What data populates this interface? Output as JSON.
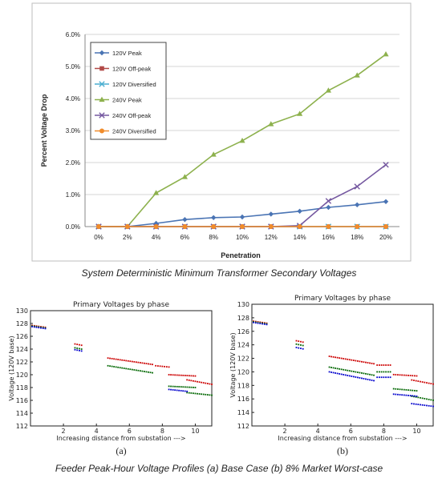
{
  "captions": {
    "top": "System Deterministic Minimum Transformer Secondary Voltages",
    "bottom": "Feeder Peak-Hour Voltage Profiles (a) Base Case (b) 8% Market Worst-case"
  },
  "chart_data": [
    {
      "type": "line",
      "title": "",
      "xlabel": "Penetration",
      "ylabel": "Percent Voltage Drop",
      "categories": [
        "0%",
        "2%",
        "4%",
        "6%",
        "8%",
        "10%",
        "12%",
        "14%",
        "16%",
        "18%",
        "20%"
      ],
      "x": [
        0,
        2,
        4,
        6,
        8,
        10,
        12,
        14,
        16,
        18,
        20
      ],
      "ylim": [
        0,
        6
      ],
      "yticks": [
        "0.0%",
        "1.0%",
        "2.0%",
        "3.0%",
        "4.0%",
        "5.0%",
        "6.0%"
      ],
      "grid": "horizontal",
      "legend": "top-left",
      "series": [
        {
          "name": "120V Peak",
          "color": "#4a74b4",
          "marker": "diamond",
          "values": [
            0,
            0,
            0.1,
            0.22,
            0.28,
            0.3,
            0.39,
            0.48,
            0.6,
            0.68,
            0.78
          ]
        },
        {
          "name": "120V Off-peak",
          "color": "#b24a48",
          "marker": "square",
          "values": [
            0,
            0,
            0,
            0,
            0,
            0,
            0,
            0,
            0,
            0,
            0
          ]
        },
        {
          "name": "120V Diversified",
          "color": "#4aaed0",
          "marker": "x",
          "values": [
            0,
            0,
            0,
            0,
            0,
            0,
            0,
            0,
            0,
            0,
            0
          ]
        },
        {
          "name": "240V Peak",
          "color": "#8db14d",
          "marker": "triangle",
          "values": [
            0,
            0,
            1.05,
            1.55,
            2.25,
            2.68,
            3.2,
            3.52,
            4.25,
            4.72,
            5.38
          ]
        },
        {
          "name": "240V Off-peak",
          "color": "#7558a0",
          "marker": "x",
          "values": [
            0,
            0,
            0,
            0,
            0,
            0,
            0,
            0.03,
            0.8,
            1.25,
            1.93
          ]
        },
        {
          "name": "240V Diversified",
          "color": "#f08c2c",
          "marker": "circle",
          "values": [
            0,
            0,
            0,
            0,
            0,
            0,
            0,
            0,
            0,
            0,
            0
          ]
        }
      ]
    },
    {
      "type": "scatter",
      "title": "Primary Voltages by phase",
      "panel_label": "(a)",
      "xlabel": "Increasing distance from substation --->",
      "ylabel": "Voltage (120V base)",
      "xlim": [
        0,
        11
      ],
      "ylim": [
        112,
        130
      ],
      "xticks": [
        2,
        4,
        6,
        8,
        10
      ],
      "yticks": [
        112,
        114,
        116,
        118,
        120,
        122,
        124,
        126,
        128,
        130
      ],
      "series": [
        {
          "color": "#cc0000",
          "segments": [
            [
              0.1,
              0.9,
              127.7,
              127.4
            ],
            [
              2.7,
              3.1,
              124.8,
              124.6
            ],
            [
              4.7,
              7.4,
              122.6,
              121.6
            ],
            [
              7.6,
              8.4,
              121.4,
              121.2
            ],
            [
              8.4,
              10.0,
              120.0,
              119.8
            ],
            [
              9.5,
              11.0,
              119.2,
              118.5
            ]
          ]
        },
        {
          "color": "#006600",
          "segments": [
            [
              0.1,
              0.9,
              127.6,
              127.3
            ],
            [
              2.7,
              3.1,
              124.2,
              124.0
            ],
            [
              4.7,
              7.4,
              121.4,
              120.3
            ],
            [
              8.4,
              10.0,
              118.2,
              118.0
            ],
            [
              9.5,
              11.0,
              117.2,
              116.8
            ]
          ]
        },
        {
          "color": "#0000cc",
          "segments": [
            [
              0.1,
              0.9,
              127.5,
              127.2
            ],
            [
              2.7,
              3.1,
              123.9,
              123.7
            ],
            [
              8.4,
              9.5,
              117.7,
              117.4
            ]
          ]
        }
      ]
    },
    {
      "type": "scatter",
      "title": "Primary Voltages by phase",
      "panel_label": "(b)",
      "xlabel": "Increasing distance from substation --->",
      "ylabel": "Voltage (120V base)",
      "xlim": [
        0,
        11
      ],
      "ylim": [
        112,
        130
      ],
      "xticks": [
        2,
        4,
        6,
        8,
        10
      ],
      "yticks": [
        112,
        114,
        116,
        118,
        120,
        122,
        124,
        126,
        128,
        130
      ],
      "series": [
        {
          "color": "#cc0000",
          "segments": [
            [
              0.1,
              0.9,
              127.5,
              127.2
            ],
            [
              2.7,
              3.1,
              124.6,
              124.4
            ],
            [
              4.7,
              7.4,
              122.3,
              121.2
            ],
            [
              7.6,
              8.4,
              121.0,
              121.0
            ],
            [
              8.6,
              10.0,
              119.6,
              119.4
            ],
            [
              9.7,
              11.0,
              118.8,
              118.2
            ]
          ]
        },
        {
          "color": "#006600",
          "segments": [
            [
              0.1,
              0.9,
              127.4,
              127.1
            ],
            [
              2.7,
              3.1,
              124.1,
              123.9
            ],
            [
              4.7,
              7.4,
              120.7,
              119.5
            ],
            [
              7.6,
              8.4,
              120.0,
              120.0
            ],
            [
              8.6,
              10.0,
              117.5,
              117.2
            ],
            [
              9.7,
              11.0,
              116.4,
              115.8
            ]
          ]
        },
        {
          "color": "#0000cc",
          "segments": [
            [
              0.1,
              0.9,
              127.3,
              127.0
            ],
            [
              2.7,
              3.1,
              123.6,
              123.4
            ],
            [
              4.7,
              7.4,
              120.0,
              118.7
            ],
            [
              7.6,
              8.4,
              119.2,
              119.2
            ],
            [
              8.6,
              10.0,
              116.7,
              116.4
            ],
            [
              9.7,
              11.0,
              115.3,
              114.9
            ]
          ]
        }
      ]
    }
  ]
}
